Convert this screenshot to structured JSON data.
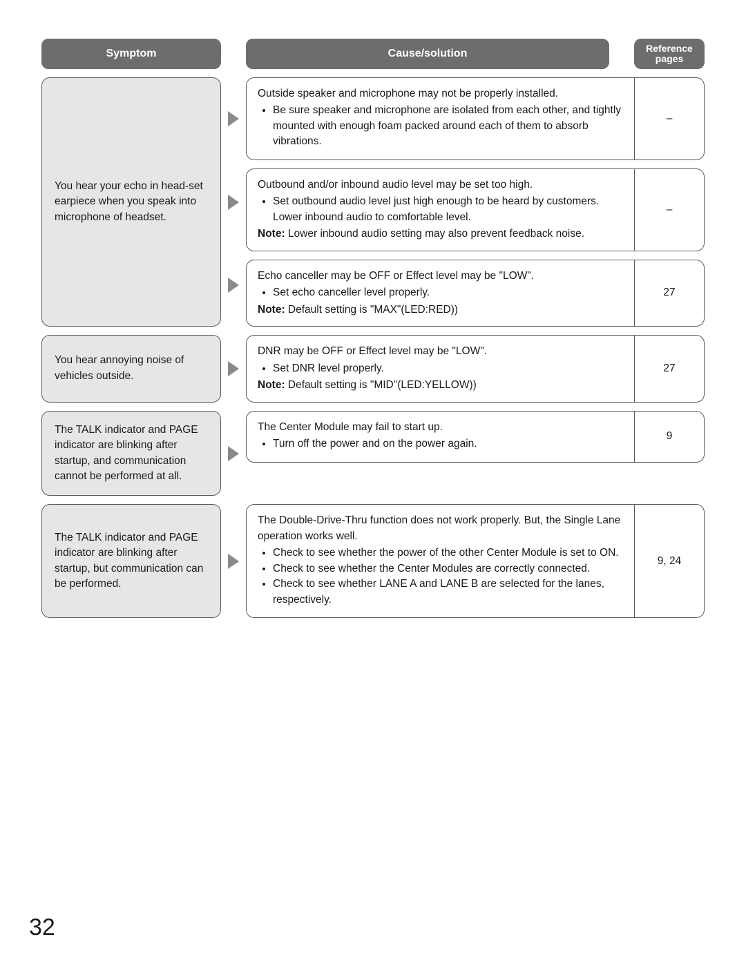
{
  "headers": {
    "symptom": "Symptom",
    "cause": "Cause/solution",
    "ref1": "Reference",
    "ref2": "pages"
  },
  "page_number": "32",
  "groups": [
    {
      "symptom": "You hear your echo in head-set earpiece when you speak into microphone of headset.",
      "causes": [
        {
          "lead": "Outside speaker and microphone may not be properly installed.",
          "bullets": [
            "Be sure speaker and microphone are isolated from each other, and tightly mounted with enough foam packed around each of them to absorb vibrations."
          ],
          "note": "",
          "ref": "–"
        },
        {
          "lead": "Outbound and/or inbound audio level may be set too high.",
          "bullets": [
            "Set outbound audio level just high enough to be heard by customers. Lower inbound audio to comfortable level."
          ],
          "note": "Lower inbound audio setting may also prevent feedback noise.",
          "ref": "–"
        },
        {
          "lead": "Echo canceller may be OFF or Effect level may be \"LOW\".",
          "bullets": [
            "Set echo canceller level properly."
          ],
          "note": "Default setting is \"MAX\"(LED:RED))",
          "ref": "27"
        }
      ]
    },
    {
      "symptom": "You hear annoying noise of vehicles outside.",
      "causes": [
        {
          "lead": "DNR may be OFF or Effect level may be \"LOW\".",
          "bullets": [
            "Set DNR level properly."
          ],
          "note": "Default setting is \"MID\"(LED:YELLOW))",
          "ref": "27"
        }
      ]
    },
    {
      "symptom": "The TALK indicator and PAGE indicator are blinking after startup, and communication cannot be performed at all.",
      "causes": [
        {
          "lead": "The Center Module may fail to start up.",
          "bullets": [
            "Turn off the power and on the power again."
          ],
          "note": "",
          "ref": "9"
        }
      ]
    },
    {
      "symptom": "The TALK indicator and PAGE indicator are blinking after startup, but communication can be performed.",
      "causes": [
        {
          "lead": "The Double-Drive-Thru function does not work properly. But, the Single Lane operation works well.",
          "bullets": [
            "Check to see whether the power of the other Center Module is set to ON.",
            "Check to see whether the Center Modules are correctly connected.",
            "Check to see whether LANE A and LANE B are selected for the lanes, respectively."
          ],
          "note": "",
          "ref": "9, 24"
        }
      ]
    }
  ]
}
